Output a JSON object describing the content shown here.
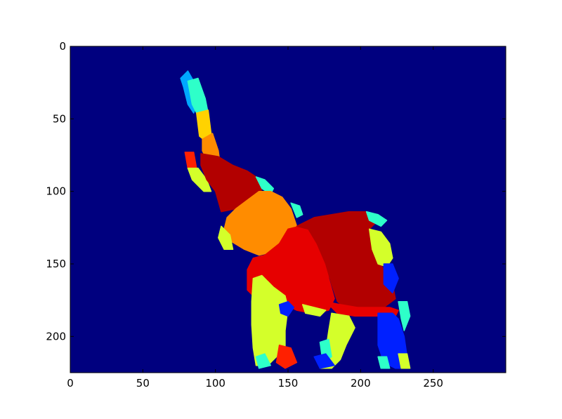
{
  "chart_data": {
    "type": "heatmap",
    "title": "",
    "xlabel": "",
    "ylabel": "",
    "xlim": [
      0,
      300
    ],
    "ylim": [
      225,
      0
    ],
    "xticks": [
      0,
      50,
      100,
      150,
      200,
      250
    ],
    "yticks": [
      0,
      50,
      100,
      150,
      200
    ],
    "grid": false,
    "colormap": "jet",
    "background_color": "#00007f",
    "segments": [
      {
        "name": "trunk-tip",
        "color": "#00a8ff",
        "points": [
          [
            76,
            22
          ],
          [
            81,
            17
          ],
          [
            85,
            24
          ],
          [
            88,
            38
          ],
          [
            85,
            46
          ],
          [
            81,
            40
          ],
          [
            78,
            28
          ]
        ]
      },
      {
        "name": "trunk-cyan",
        "color": "#2effc9",
        "points": [
          [
            81,
            24
          ],
          [
            88,
            22
          ],
          [
            93,
            36
          ],
          [
            95,
            46
          ],
          [
            88,
            48
          ],
          [
            84,
            40
          ]
        ]
      },
      {
        "name": "trunk-yellow",
        "color": "#ffd200",
        "points": [
          [
            87,
            46
          ],
          [
            95,
            44
          ],
          [
            97,
            60
          ],
          [
            94,
            66
          ],
          [
            89,
            62
          ]
        ]
      },
      {
        "name": "trunk-orange",
        "color": "#ff8c00",
        "points": [
          [
            91,
            64
          ],
          [
            98,
            60
          ],
          [
            102,
            72
          ],
          [
            103,
            80
          ],
          [
            95,
            80
          ],
          [
            91,
            72
          ]
        ]
      },
      {
        "name": "trunk-curl-red",
        "color": "#ff2000",
        "points": [
          [
            79,
            73
          ],
          [
            85,
            73
          ],
          [
            87,
            84
          ],
          [
            81,
            84
          ]
        ]
      },
      {
        "name": "trunk-curl-yellow",
        "color": "#d4ff2a",
        "points": [
          [
            81,
            84
          ],
          [
            88,
            84
          ],
          [
            94,
            92
          ],
          [
            97,
            100
          ],
          [
            92,
            100
          ],
          [
            84,
            92
          ]
        ]
      },
      {
        "name": "head-darkred",
        "color": "#b20000",
        "points": [
          [
            90,
            74
          ],
          [
            102,
            76
          ],
          [
            112,
            82
          ],
          [
            122,
            86
          ],
          [
            128,
            90
          ],
          [
            132,
            98
          ],
          [
            130,
            104
          ],
          [
            122,
            108
          ],
          [
            114,
            112
          ],
          [
            104,
            114
          ],
          [
            100,
            100
          ],
          [
            94,
            92
          ],
          [
            90,
            82
          ]
        ]
      },
      {
        "name": "head-cyan-edge",
        "color": "#2effc9",
        "points": [
          [
            128,
            90
          ],
          [
            134,
            92
          ],
          [
            140,
            98
          ],
          [
            138,
            102
          ],
          [
            132,
            98
          ]
        ]
      },
      {
        "name": "ear-orange",
        "color": "#ff8c00",
        "points": [
          [
            114,
            112
          ],
          [
            122,
            106
          ],
          [
            130,
            100
          ],
          [
            138,
            100
          ],
          [
            146,
            104
          ],
          [
            152,
            112
          ],
          [
            156,
            124
          ],
          [
            150,
            130
          ],
          [
            144,
            136
          ],
          [
            138,
            142
          ],
          [
            130,
            144
          ],
          [
            120,
            140
          ],
          [
            110,
            134
          ],
          [
            106,
            126
          ],
          [
            108,
            118
          ]
        ]
      },
      {
        "name": "neck-cyan",
        "color": "#2effc9",
        "points": [
          [
            152,
            108
          ],
          [
            158,
            110
          ],
          [
            160,
            116
          ],
          [
            156,
            118
          ]
        ]
      },
      {
        "name": "trunk-base-yellow",
        "color": "#d4ff2a",
        "points": [
          [
            104,
            124
          ],
          [
            110,
            130
          ],
          [
            112,
            140
          ],
          [
            106,
            140
          ],
          [
            102,
            132
          ]
        ]
      },
      {
        "name": "chest-red",
        "color": "#e60000",
        "points": [
          [
            144,
            136
          ],
          [
            150,
            126
          ],
          [
            158,
            124
          ],
          [
            166,
            126
          ],
          [
            172,
            134
          ],
          [
            176,
            146
          ],
          [
            178,
            160
          ],
          [
            182,
            174
          ],
          [
            178,
            182
          ],
          [
            166,
            184
          ],
          [
            156,
            182
          ],
          [
            148,
            178
          ],
          [
            138,
            176
          ],
          [
            128,
            174
          ],
          [
            122,
            168
          ],
          [
            122,
            154
          ],
          [
            126,
            146
          ],
          [
            134,
            144
          ]
        ]
      },
      {
        "name": "body-darkred",
        "color": "#b20000",
        "points": [
          [
            156,
            124
          ],
          [
            168,
            118
          ],
          [
            180,
            116
          ],
          [
            192,
            114
          ],
          [
            204,
            114
          ],
          [
            214,
            118
          ],
          [
            206,
            126
          ],
          [
            208,
            140
          ],
          [
            216,
            154
          ],
          [
            222,
            164
          ],
          [
            224,
            174
          ],
          [
            216,
            180
          ],
          [
            206,
            184
          ],
          [
            192,
            182
          ],
          [
            184,
            176
          ],
          [
            180,
            164
          ],
          [
            176,
            150
          ],
          [
            170,
            136
          ],
          [
            164,
            126
          ]
        ]
      },
      {
        "name": "back-cyan",
        "color": "#2effc9",
        "points": [
          [
            204,
            114
          ],
          [
            212,
            116
          ],
          [
            218,
            120
          ],
          [
            214,
            124
          ],
          [
            206,
            120
          ]
        ]
      },
      {
        "name": "rump-yellow",
        "color": "#d4ff2a",
        "points": [
          [
            206,
            126
          ],
          [
            214,
            128
          ],
          [
            220,
            136
          ],
          [
            222,
            146
          ],
          [
            218,
            152
          ],
          [
            212,
            150
          ],
          [
            208,
            140
          ]
        ]
      },
      {
        "name": "hind-blue",
        "color": "#0020ff",
        "points": [
          [
            216,
            150
          ],
          [
            222,
            150
          ],
          [
            226,
            160
          ],
          [
            222,
            170
          ],
          [
            216,
            164
          ]
        ]
      },
      {
        "name": "belly-red",
        "color": "#e60000",
        "points": [
          [
            176,
            176
          ],
          [
            186,
            178
          ],
          [
            198,
            180
          ],
          [
            210,
            180
          ],
          [
            220,
            180
          ],
          [
            226,
            182
          ],
          [
            224,
            186
          ],
          [
            210,
            186
          ],
          [
            196,
            186
          ],
          [
            184,
            184
          ]
        ]
      },
      {
        "name": "belly-yellow",
        "color": "#d4ff2a",
        "points": [
          [
            160,
            178
          ],
          [
            168,
            180
          ],
          [
            176,
            182
          ],
          [
            172,
            186
          ],
          [
            162,
            184
          ]
        ]
      },
      {
        "name": "front-leg-yellow",
        "color": "#d4ff2a",
        "points": [
          [
            126,
            160
          ],
          [
            132,
            158
          ],
          [
            140,
            166
          ],
          [
            148,
            172
          ],
          [
            150,
            180
          ],
          [
            148,
            196
          ],
          [
            148,
            210
          ],
          [
            142,
            214
          ],
          [
            136,
            220
          ],
          [
            128,
            220
          ],
          [
            126,
            208
          ],
          [
            125,
            192
          ],
          [
            125,
            176
          ]
        ]
      },
      {
        "name": "front-leg-blue",
        "color": "#0020ff",
        "points": [
          [
            144,
            178
          ],
          [
            150,
            176
          ],
          [
            154,
            180
          ],
          [
            150,
            186
          ],
          [
            145,
            184
          ]
        ]
      },
      {
        "name": "front-foot-red",
        "color": "#ff2000",
        "points": [
          [
            144,
            206
          ],
          [
            152,
            208
          ],
          [
            156,
            218
          ],
          [
            148,
            222
          ],
          [
            142,
            218
          ]
        ]
      },
      {
        "name": "front-foot-cyan",
        "color": "#2effc9",
        "points": [
          [
            128,
            214
          ],
          [
            134,
            212
          ],
          [
            138,
            220
          ],
          [
            130,
            222
          ]
        ]
      },
      {
        "name": "mid-leg-yellow",
        "color": "#d4ff2a",
        "points": [
          [
            180,
            184
          ],
          [
            192,
            186
          ],
          [
            196,
            194
          ],
          [
            190,
            206
          ],
          [
            186,
            216
          ],
          [
            180,
            222
          ],
          [
            172,
            222
          ],
          [
            176,
            210
          ],
          [
            178,
            196
          ]
        ]
      },
      {
        "name": "mid-leg-cyan",
        "color": "#2effc9",
        "points": [
          [
            172,
            204
          ],
          [
            178,
            202
          ],
          [
            180,
            214
          ],
          [
            174,
            218
          ]
        ]
      },
      {
        "name": "mid-foot-blue",
        "color": "#0020ff",
        "points": [
          [
            168,
            214
          ],
          [
            176,
            212
          ],
          [
            182,
            220
          ],
          [
            172,
            222
          ]
        ]
      },
      {
        "name": "hind-leg-blue",
        "color": "#0020ff",
        "points": [
          [
            212,
            184
          ],
          [
            222,
            184
          ],
          [
            226,
            188
          ],
          [
            230,
            200
          ],
          [
            232,
            214
          ],
          [
            234,
            222
          ],
          [
            224,
            222
          ],
          [
            216,
            218
          ],
          [
            212,
            206
          ],
          [
            212,
            194
          ]
        ]
      },
      {
        "name": "hind-leg-cyan",
        "color": "#2effc9",
        "points": [
          [
            226,
            176
          ],
          [
            232,
            176
          ],
          [
            234,
            186
          ],
          [
            230,
            196
          ],
          [
            228,
            188
          ]
        ]
      },
      {
        "name": "hind-foot-yellow",
        "color": "#d4ff2a",
        "points": [
          [
            226,
            212
          ],
          [
            232,
            212
          ],
          [
            234,
            222
          ],
          [
            228,
            222
          ]
        ]
      },
      {
        "name": "hind-foot-cyan",
        "color": "#2effc9",
        "points": [
          [
            212,
            214
          ],
          [
            218,
            214
          ],
          [
            220,
            222
          ],
          [
            214,
            222
          ]
        ]
      }
    ]
  }
}
